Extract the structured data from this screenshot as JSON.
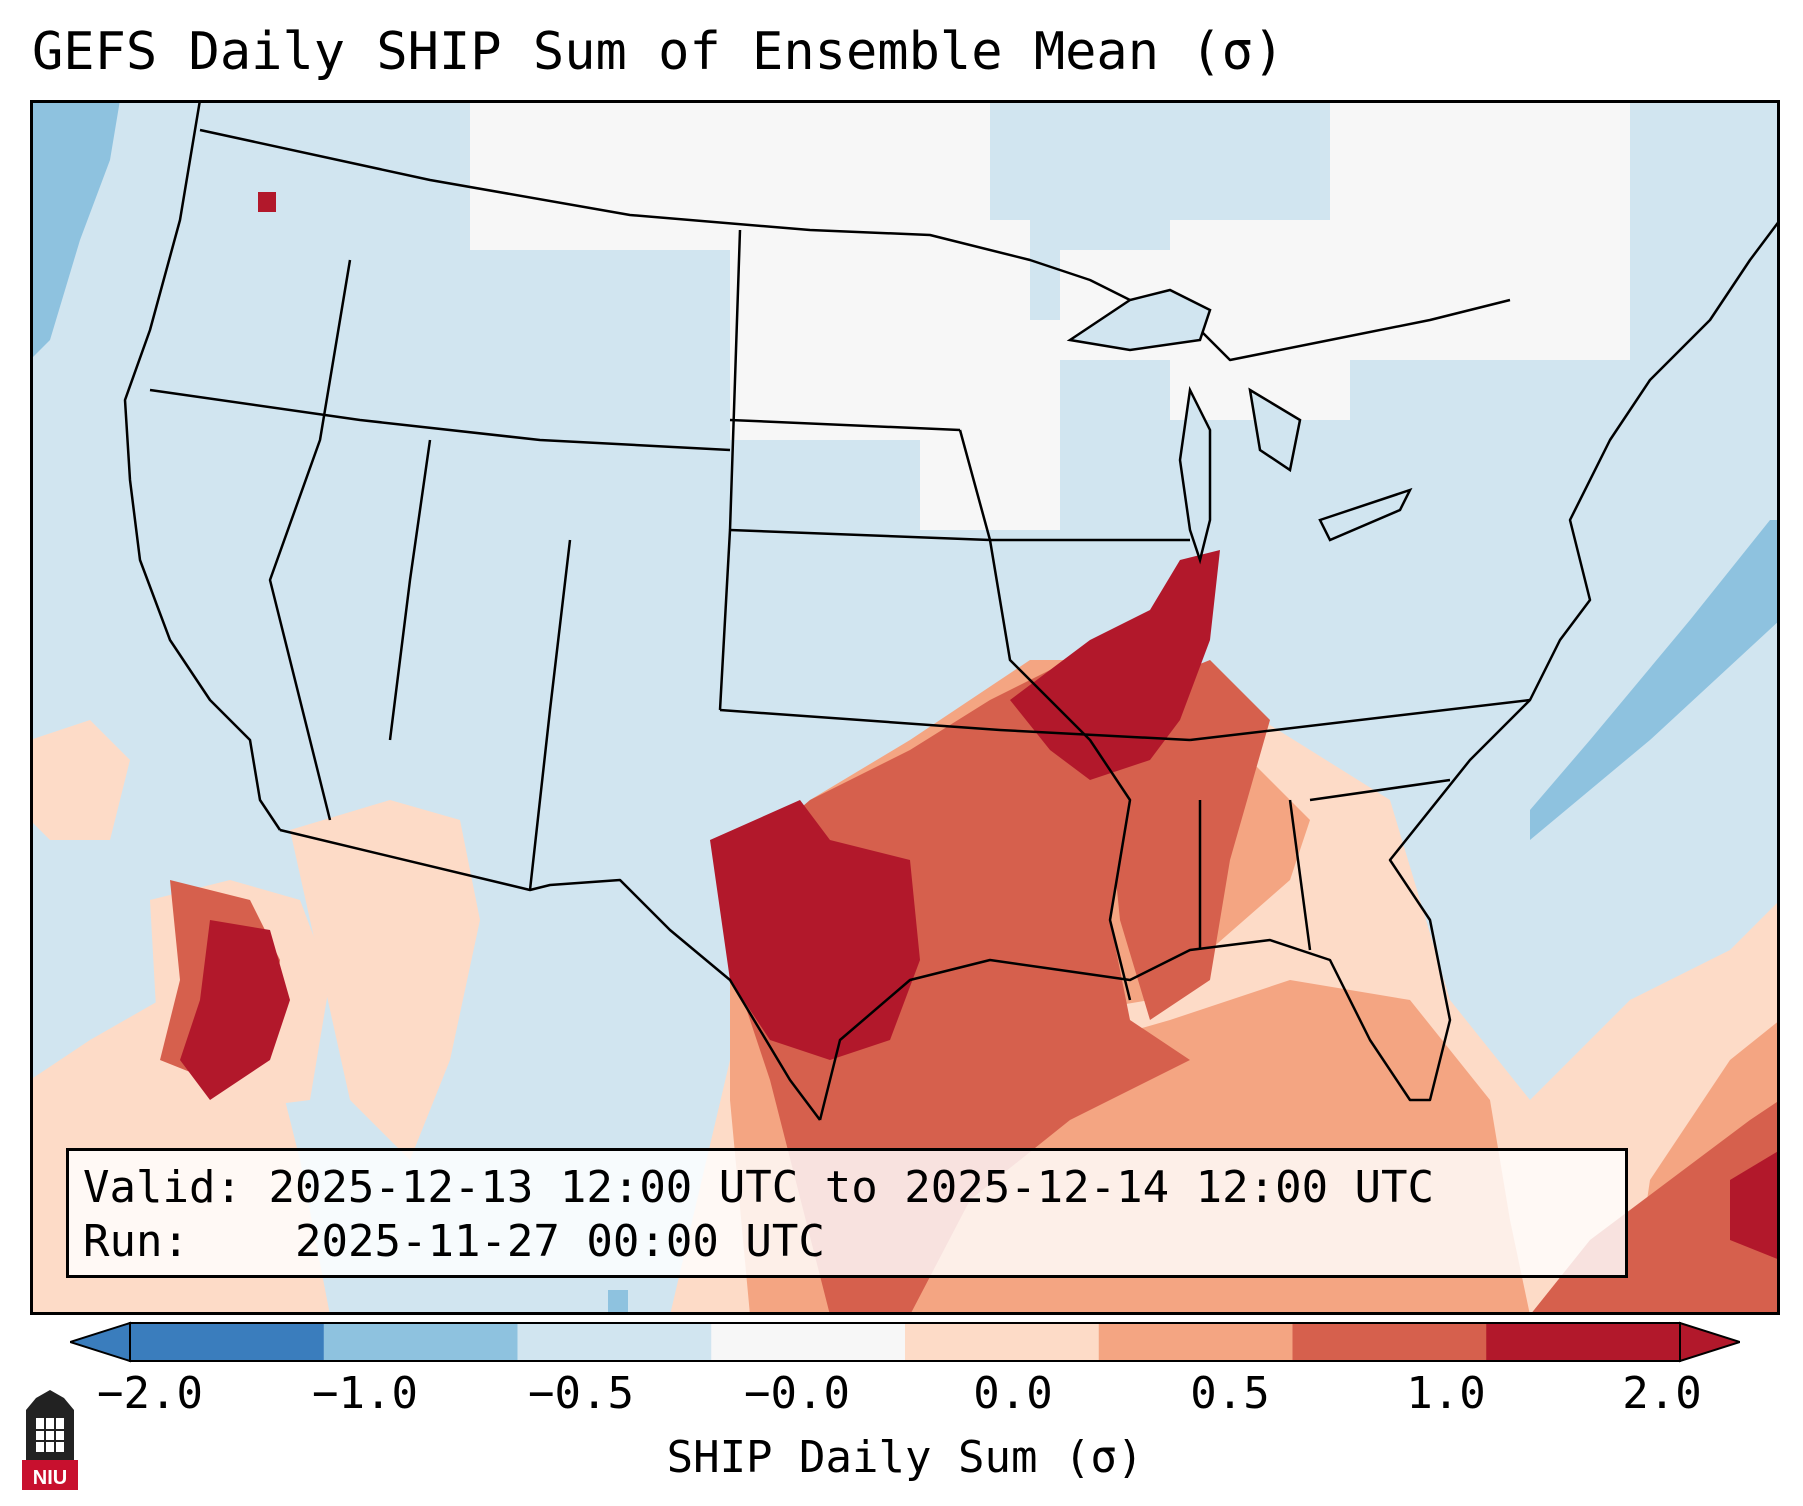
{
  "title": "GEFS Daily SHIP Sum of Ensemble Mean (σ)",
  "legend": {
    "valid_label": "Valid:",
    "valid_value": "2025-12-13 12:00 UTC to 2025-12-14 12:00 UTC",
    "run_label": "Run:",
    "run_value": "2025-11-27 00:00 UTC"
  },
  "colorbar": {
    "label": "SHIP Daily Sum (σ)",
    "ticks": [
      "−2.0",
      "−1.0",
      "−0.5",
      "−0.0",
      "0.0",
      "0.5",
      "1.0",
      "2.0"
    ],
    "colors": [
      "#3a7dbd",
      "#8ec2df",
      "#d1e5f0",
      "#f7f7f7",
      "#fddbc7",
      "#f4a582",
      "#d6604d",
      "#b2182b"
    ]
  },
  "map": {
    "background_color": "#d1e5f0",
    "regions": [
      {
        "name": "southern-plains",
        "level": "1.0 to 2.0",
        "color": "#b2182b"
      },
      {
        "name": "mid-mississippi-valley",
        "level": "1.0 to 2.0",
        "color": "#b2182b"
      },
      {
        "name": "lower-mississippi-valley",
        "level": "0.5 to 1.0",
        "color": "#d6604d"
      },
      {
        "name": "gulf-coast",
        "level": "0.5 to 1.0",
        "color": "#d6604d"
      },
      {
        "name": "southeast",
        "level": "0.0 to 0.5",
        "color": "#fddbc7"
      },
      {
        "name": "baja-california",
        "level": "1.0 to 2.0",
        "color": "#b2182b"
      },
      {
        "name": "northern-plains",
        "level": "-0.0 to 0.0",
        "color": "#f7f7f7"
      },
      {
        "name": "western-atlantic",
        "level": "-1.0 to -0.5",
        "color": "#8ec2df"
      },
      {
        "name": "caribbean",
        "level": "1.0 to 2.0",
        "color": "#b2182b"
      }
    ]
  },
  "logo_text": "NIU"
}
